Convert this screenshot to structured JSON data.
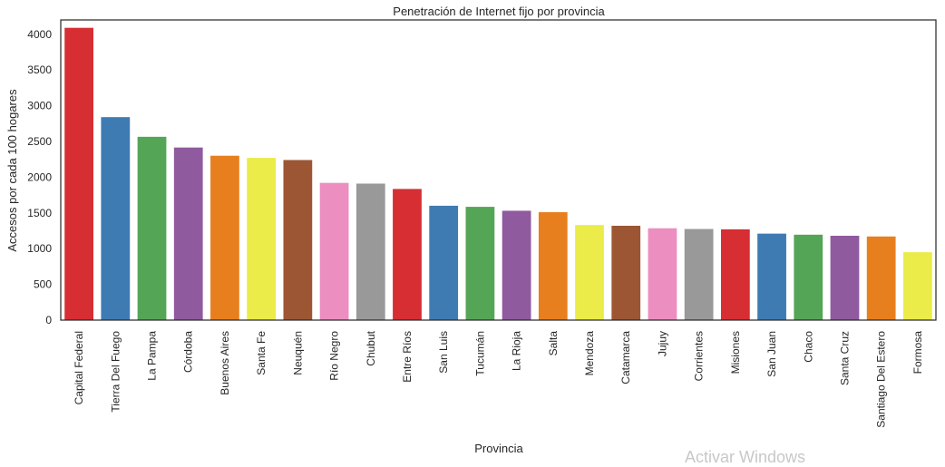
{
  "chart_data": {
    "type": "bar",
    "title": "Penetración de Internet fijo por provincia",
    "xlabel": "Provincia",
    "ylabel": "Accesos por cada 100 hogares",
    "ylim": [
      0,
      4200
    ],
    "yticks": [
      0,
      500,
      1000,
      1500,
      2000,
      2500,
      3000,
      3500,
      4000
    ],
    "grid": false,
    "categories": [
      "Capital Federal",
      "Tierra Del Fuego",
      "La Pampa",
      "Córdoba",
      "Buenos Aires",
      "Santa Fe",
      "Neuquén",
      "Río Negro",
      "Chubut",
      "Entre Ríos",
      "San Luis",
      "Tucumán",
      "La Rioja",
      "Salta",
      "Mendoza",
      "Catamarca",
      "Jujuy",
      "Corrientes",
      "Misiones",
      "San Juan",
      "Chaco",
      "Santa Cruz",
      "Santiago Del Estero",
      "Formosa"
    ],
    "values": [
      4090,
      2840,
      2565,
      2415,
      2300,
      2270,
      2240,
      1920,
      1910,
      1835,
      1600,
      1585,
      1530,
      1510,
      1330,
      1320,
      1285,
      1275,
      1270,
      1210,
      1195,
      1180,
      1170,
      950
    ],
    "colors": [
      "#d62e33",
      "#3e7bb3",
      "#55a557",
      "#8f5a9e",
      "#e87f1e",
      "#ebeb49",
      "#9c5634",
      "#ec8ec0",
      "#999999",
      "#d62e33",
      "#3e7bb3",
      "#55a557",
      "#8f5a9e",
      "#e87f1e",
      "#ebeb49",
      "#9c5634",
      "#ec8ec0",
      "#999999",
      "#d62e33",
      "#3e7bb3",
      "#55a557",
      "#8f5a9e",
      "#e87f1e",
      "#ebeb49"
    ]
  },
  "watermark": "Activar Windows"
}
